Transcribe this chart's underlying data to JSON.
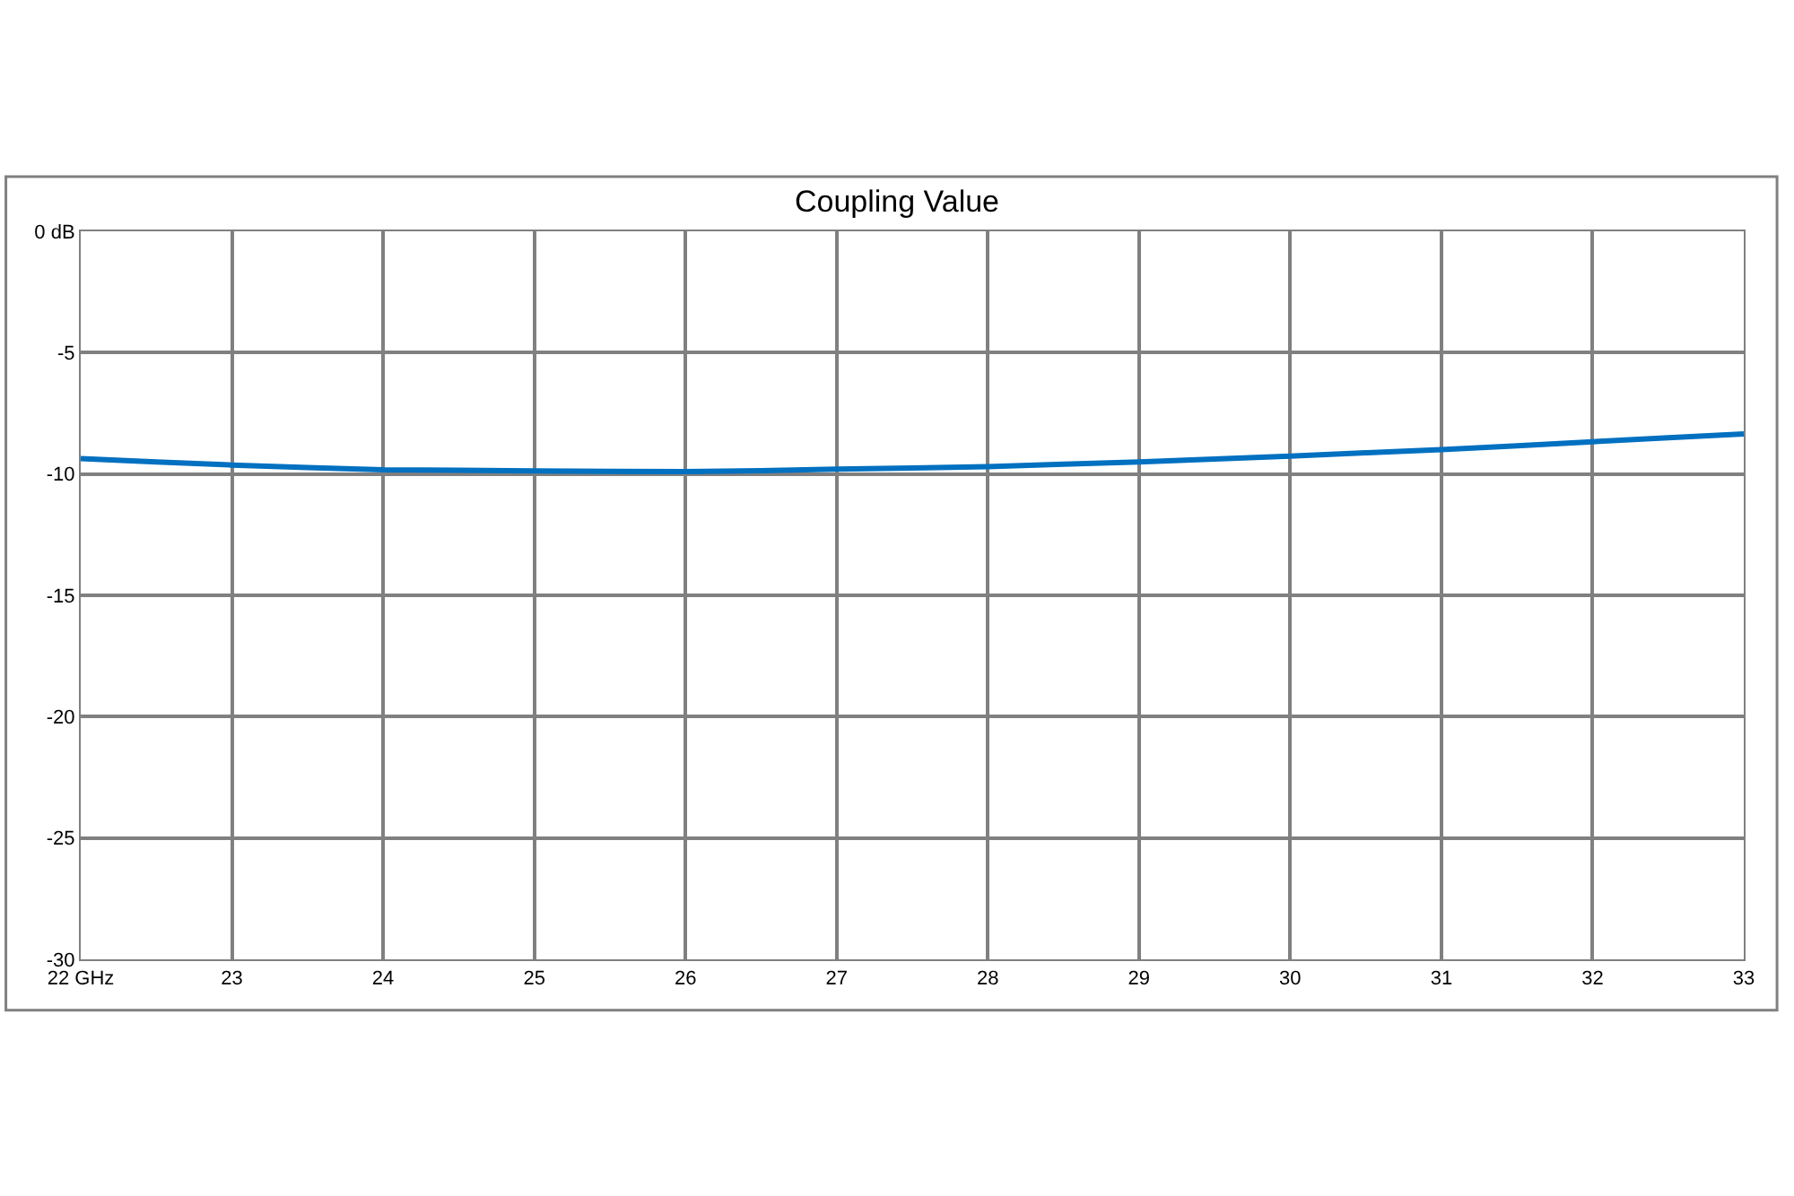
{
  "chart_data": {
    "type": "line",
    "title": "Coupling Value",
    "x": [
      22,
      22.5,
      23,
      23.5,
      24,
      24.5,
      25,
      25.5,
      26,
      26.5,
      27,
      27.5,
      28,
      28.5,
      29,
      29.5,
      30,
      30.5,
      31,
      31.5,
      32,
      32.5,
      33
    ],
    "series": [
      {
        "color": "#0070c0",
        "values": [
          -9.37,
          -9.5,
          -9.63,
          -9.74,
          -9.83,
          -9.85,
          -9.87,
          -9.89,
          -9.9,
          -9.86,
          -9.8,
          -9.75,
          -9.7,
          -9.6,
          -9.5,
          -9.38,
          -9.26,
          -9.13,
          -9.0,
          -8.84,
          -8.67,
          -8.51,
          -8.35
        ]
      }
    ],
    "xlim": [
      22,
      33
    ],
    "xticks": [
      {
        "value": 22,
        "label": "22 GHz"
      },
      23,
      24,
      25,
      26,
      27,
      28,
      29,
      30,
      31,
      32,
      33
    ],
    "ylim": [
      -30,
      0
    ],
    "yticks": [
      -30,
      -25,
      -20,
      -15,
      -10,
      -5,
      {
        "value": 0,
        "label": "0 dB"
      }
    ],
    "grid": true,
    "marker": "none",
    "line_style": "solid"
  }
}
